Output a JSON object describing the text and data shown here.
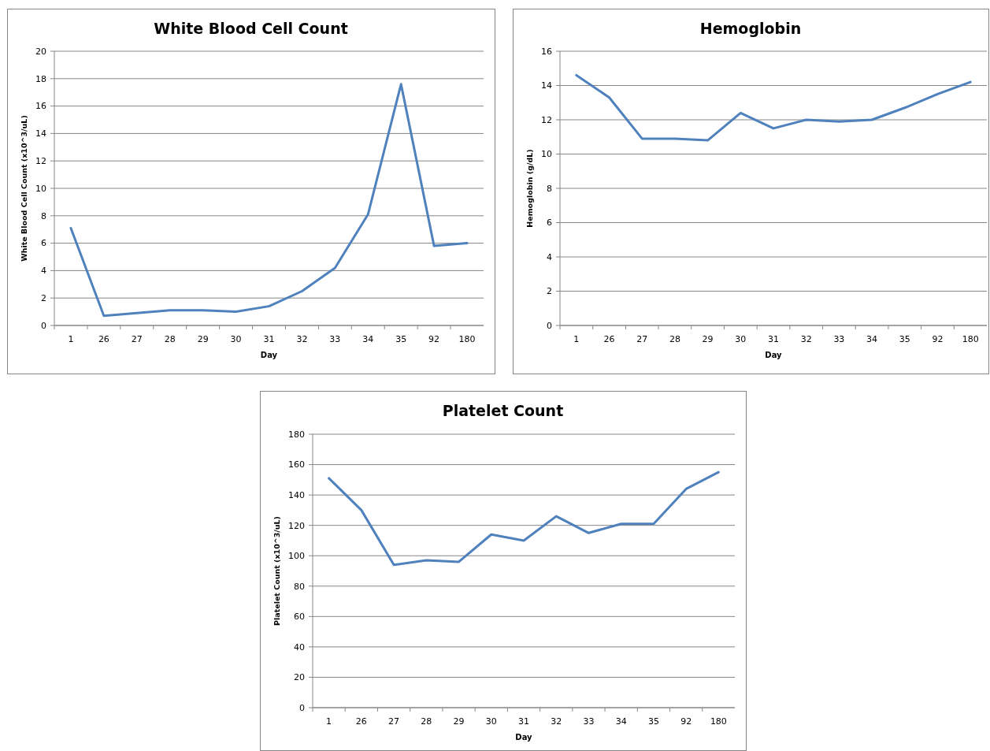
{
  "chart_data": [
    {
      "type": "line",
      "title": "White Blood Cell Count",
      "xlabel": "Day",
      "ylabel": "White Blood Cell Count  (x10^3/uL)",
      "categories": [
        "1",
        "26",
        "27",
        "28",
        "29",
        "30",
        "31",
        "32",
        "33",
        "34",
        "35",
        "92",
        "180"
      ],
      "series": [
        {
          "color": "#4f81bd",
          "values": [
            7.1,
            0.7,
            0.9,
            1.1,
            1.1,
            1.0,
            1.4,
            2.5,
            4.2,
            8.1,
            17.6,
            5.8,
            6.0
          ]
        }
      ],
      "ylim": [
        0,
        20
      ],
      "yticks": [
        0,
        2,
        4,
        6,
        8,
        10,
        12,
        14,
        16,
        18,
        20
      ],
      "grid": "y",
      "marker": "none",
      "line_style": "solid"
    },
    {
      "type": "line",
      "title": "Hemoglobin",
      "xlabel": "Day",
      "ylabel": "Hemoglobin (g/dL)",
      "categories": [
        "1",
        "26",
        "27",
        "28",
        "29",
        "30",
        "31",
        "32",
        "33",
        "34",
        "35",
        "92",
        "180"
      ],
      "series": [
        {
          "color": "#4f81bd",
          "values": [
            14.6,
            13.3,
            10.9,
            10.9,
            10.8,
            12.4,
            11.5,
            12.0,
            11.9,
            12.0,
            12.7,
            13.5,
            14.2
          ]
        }
      ],
      "ylim": [
        0,
        16
      ],
      "yticks": [
        0,
        2,
        4,
        6,
        8,
        10,
        12,
        14,
        16
      ],
      "grid": "y",
      "marker": "none",
      "line_style": "solid"
    },
    {
      "type": "line",
      "title": "Platelet Count",
      "xlabel": "Day",
      "ylabel": "Platelet Count (x10^3/uL)",
      "categories": [
        "1",
        "26",
        "27",
        "28",
        "29",
        "30",
        "31",
        "32",
        "33",
        "34",
        "35",
        "92",
        "180"
      ],
      "series": [
        {
          "color": "#4f81bd",
          "values": [
            151,
            130,
            94,
            97,
            96,
            114,
            110,
            126,
            115,
            121,
            121,
            144,
            155
          ]
        }
      ],
      "ylim": [
        0,
        180
      ],
      "yticks": [
        0,
        20,
        40,
        60,
        80,
        100,
        120,
        140,
        160,
        180
      ],
      "grid": "y",
      "marker": "none",
      "line_style": "solid"
    }
  ]
}
